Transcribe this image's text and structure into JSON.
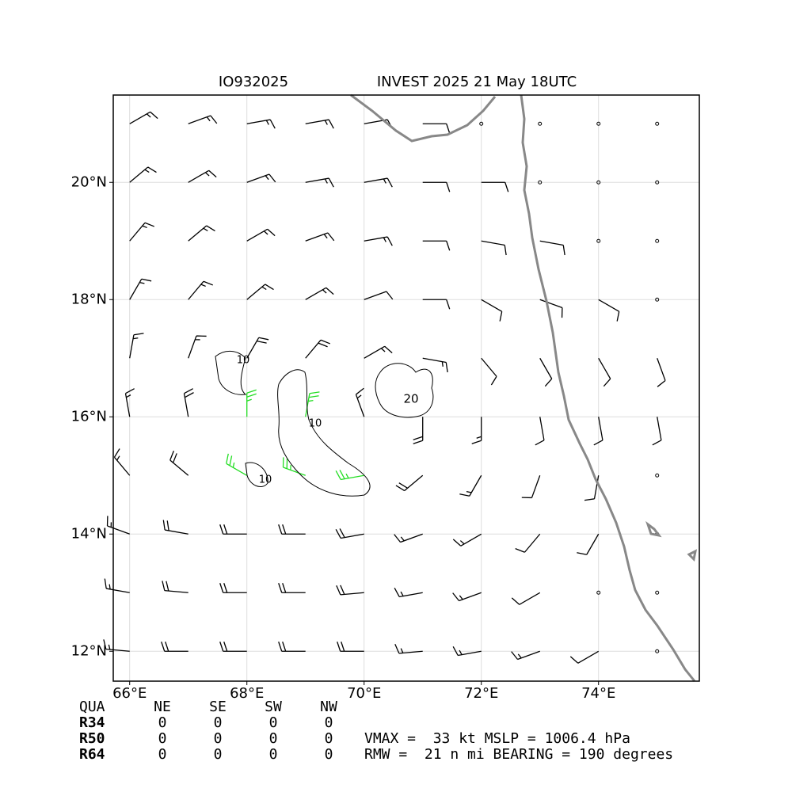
{
  "map": {
    "title_left": "IO932025",
    "title_right": "INVEST 2025 21 May 18UTC",
    "xlim": [
      65.72,
      75.72
    ],
    "ylim": [
      11.49,
      21.49
    ],
    "xticks": [
      {
        "value": 66,
        "label": "66°E"
      },
      {
        "value": 68,
        "label": "68°E"
      },
      {
        "value": 70,
        "label": "70°E"
      },
      {
        "value": 72,
        "label": "72°E"
      },
      {
        "value": 74,
        "label": "74°E"
      }
    ],
    "yticks": [
      {
        "value": 12,
        "label": "12°N"
      },
      {
        "value": 14,
        "label": "14°N"
      },
      {
        "value": 16,
        "label": "16°N"
      },
      {
        "value": 18,
        "label": "18°N"
      },
      {
        "value": 20,
        "label": "20°N"
      }
    ],
    "grid": true,
    "barb_color": "#000000",
    "strong_color": "#22dd22",
    "strong_speed": 25,
    "barbs": {
      "lons": [
        66,
        67,
        68,
        69,
        70,
        71,
        72,
        73,
        74,
        75
      ],
      "lats": [
        21,
        20,
        19,
        18,
        17,
        16,
        15,
        14,
        13,
        12
      ],
      "direction": [
        [
          60,
          70,
          80,
          80,
          80,
          90,
          0,
          0,
          0,
          0
        ],
        [
          50,
          60,
          70,
          80,
          80,
          90,
          90,
          0,
          0,
          0
        ],
        [
          40,
          50,
          60,
          70,
          80,
          90,
          100,
          100,
          0,
          0
        ],
        [
          30,
          40,
          50,
          60,
          70,
          90,
          120,
          110,
          120,
          0
        ],
        [
          10,
          20,
          30,
          40,
          60,
          100,
          140,
          150,
          150,
          160
        ],
        [
          350,
          350,
          360,
          10,
          340,
          180,
          180,
          170,
          170,
          170
        ],
        [
          320,
          310,
          300,
          290,
          260,
          230,
          210,
          200,
          190,
          180
        ],
        [
          290,
          280,
          270,
          270,
          260,
          250,
          240,
          220,
          210,
          0
        ],
        [
          280,
          275,
          270,
          270,
          265,
          260,
          250,
          240,
          0,
          0
        ],
        [
          275,
          270,
          270,
          270,
          270,
          265,
          260,
          250,
          240,
          0
        ]
      ],
      "speed": [
        [
          15,
          15,
          15,
          15,
          10,
          10,
          0,
          0,
          0,
          0
        ],
        [
          15,
          15,
          15,
          15,
          15,
          10,
          10,
          0,
          0,
          0
        ],
        [
          15,
          15,
          15,
          15,
          15,
          10,
          10,
          10,
          0,
          0
        ],
        [
          15,
          15,
          15,
          15,
          10,
          10,
          10,
          10,
          10,
          0
        ],
        [
          15,
          15,
          20,
          20,
          15,
          15,
          10,
          10,
          10,
          10
        ],
        [
          15,
          20,
          25,
          25,
          15,
          20,
          15,
          10,
          10,
          10
        ],
        [
          15,
          20,
          25,
          25,
          25,
          20,
          15,
          10,
          10,
          0
        ],
        [
          15,
          20,
          20,
          20,
          20,
          15,
          15,
          10,
          10,
          0
        ],
        [
          15,
          20,
          20,
          20,
          20,
          15,
          15,
          10,
          0,
          0
        ],
        [
          15,
          20,
          20,
          20,
          20,
          15,
          15,
          15,
          10,
          0
        ]
      ]
    },
    "contour_labels": [
      "20",
      "10",
      "10",
      "10"
    ]
  },
  "table": {
    "header": [
      "QUA",
      "NE",
      "SE",
      "SW",
      "NW"
    ],
    "rows": [
      [
        "R34",
        "0",
        "0",
        "0",
        "0"
      ],
      [
        "R50",
        "0",
        "0",
        "0",
        "0"
      ],
      [
        "R64",
        "0",
        "0",
        "0",
        "0"
      ]
    ]
  },
  "stats": [
    "VMAX =  33 kt MSLP = 1006.4 hPa",
    "RMW =  21 n mi BEARING = 190 degrees"
  ]
}
